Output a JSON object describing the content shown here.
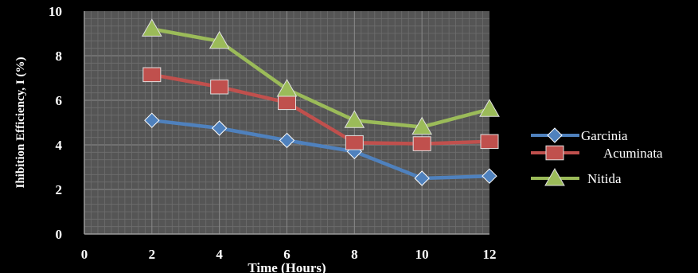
{
  "chart_data": {
    "type": "line",
    "xlabel": "Time (Hours)",
    "ylabel": "Ihibition Efficiency, I (%)",
    "x_ticks": [
      "0",
      "2",
      "4",
      "6",
      "8",
      "10",
      "12"
    ],
    "y_ticks": [
      "0",
      "2",
      "4",
      "6",
      "8",
      "10"
    ],
    "xlim": [
      0,
      12
    ],
    "ylim": [
      0,
      10
    ],
    "grid": true,
    "legend_position": "right",
    "background": "#555555",
    "x": [
      2,
      4,
      6,
      8,
      10,
      12
    ],
    "series": [
      {
        "name": "Garcinia",
        "values": [
          5.1,
          4.75,
          4.2,
          3.7,
          2.5,
          2.6
        ],
        "color": "#4f81bd",
        "marker": "diamond"
      },
      {
        "name": "Acuminata",
        "values": [
          7.15,
          6.6,
          5.9,
          4.1,
          4.05,
          4.15
        ],
        "color": "#c0504d",
        "marker": "square"
      },
      {
        "name": "Nitida",
        "values": [
          9.2,
          8.65,
          6.5,
          5.1,
          4.8,
          5.6
        ],
        "color": "#9bbb59",
        "marker": "triangle"
      }
    ]
  }
}
